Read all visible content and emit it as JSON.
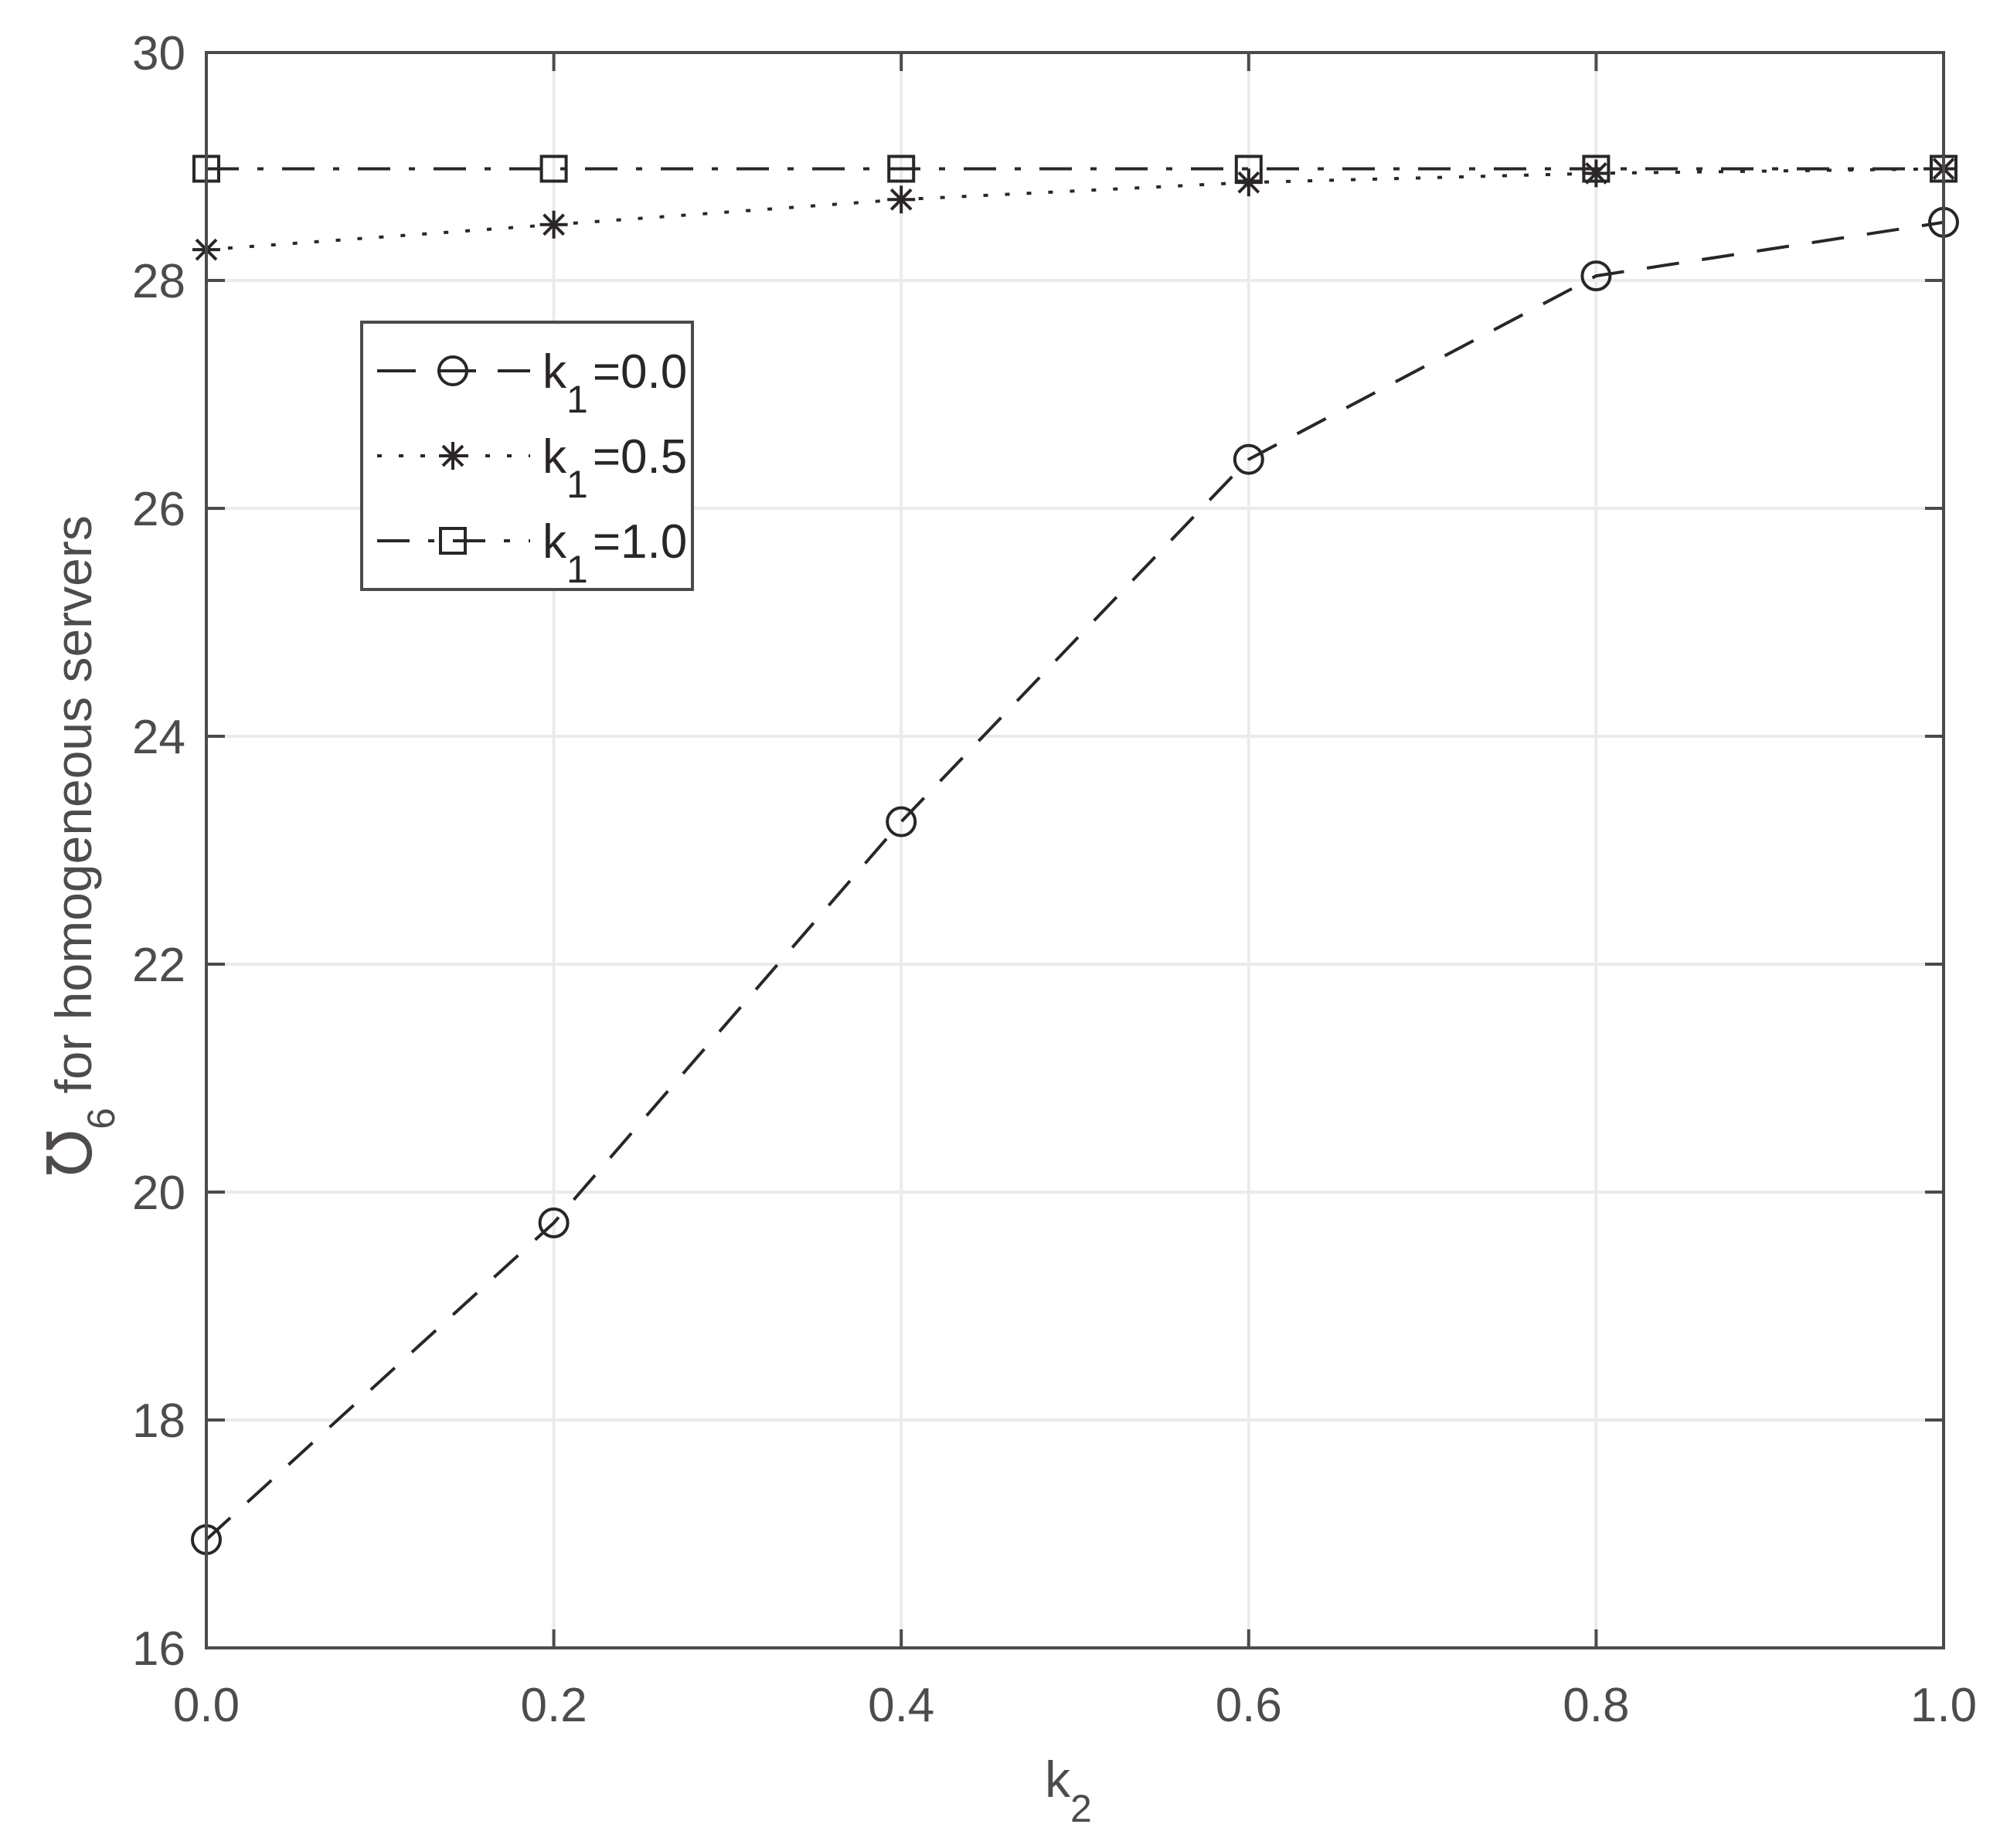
{
  "chart_data": {
    "type": "line",
    "title": "",
    "xlabel": "k",
    "xlabel_sub": "2",
    "ylabel_symbol": "℧",
    "ylabel_sub": "6",
    "ylabel_text": " for homogeneous servers",
    "x": [
      0.0,
      0.2,
      0.4,
      0.6,
      0.8,
      1.0
    ],
    "xlim": [
      0.0,
      1.0
    ],
    "ylim": [
      16,
      30
    ],
    "xticks": [
      "0.0",
      "0.2",
      "0.4",
      "0.6",
      "0.8",
      "1.0"
    ],
    "yticks": [
      "16",
      "18",
      "20",
      "22",
      "24",
      "26",
      "28",
      "30"
    ],
    "grid": true,
    "legend_position": "upper-left (inside)",
    "series": [
      {
        "name": "k1=0.0",
        "label_main": "k",
        "label_sub": "1",
        "label_value": "=0.0",
        "line_style": "dashed",
        "marker": "circle",
        "values": [
          16.95,
          19.73,
          23.25,
          26.43,
          28.04,
          28.51
        ]
      },
      {
        "name": "k1=0.5",
        "label_main": "k",
        "label_sub": "1",
        "label_value": "=0.5",
        "line_style": "dotted",
        "marker": "asterisk",
        "values": [
          28.27,
          28.49,
          28.71,
          28.86,
          28.94,
          28.98
        ]
      },
      {
        "name": "k1=1.0",
        "label_main": "k",
        "label_sub": "1",
        "label_value": "=1.0",
        "line_style": "dash-dot",
        "marker": "square",
        "values": [
          28.98,
          28.98,
          28.98,
          28.98,
          28.98,
          28.98
        ]
      }
    ],
    "colors": {
      "axis": "#4d4a4a",
      "grid": "#ebebeb",
      "series": "#2b2626",
      "text": "#4f4b4b"
    }
  }
}
